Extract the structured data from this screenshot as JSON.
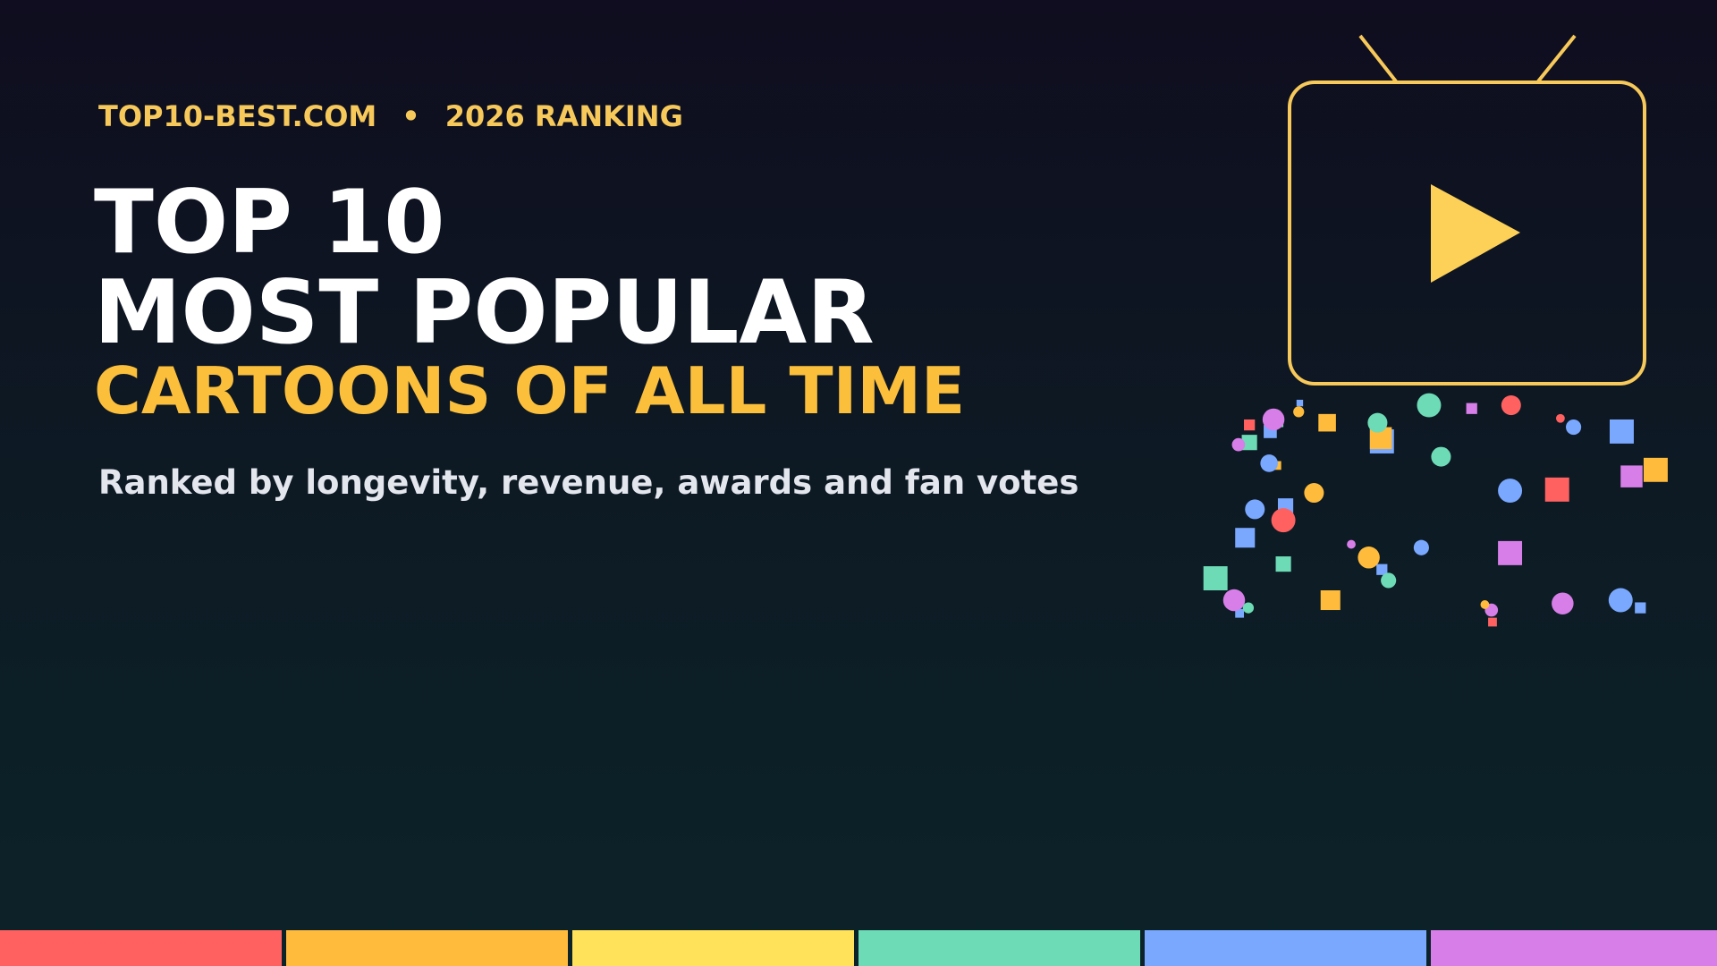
{
  "header": {
    "site": "TOP10-BEST.COM",
    "bullet": "•",
    "ranking": "2026 RANKING"
  },
  "title": {
    "line1": "TOP 10",
    "line2": "MOST POPULAR",
    "line3": "CARTOONS OF ALL TIME"
  },
  "subtitle": "Ranked by longevity, revenue, awards and fan votes"
}
